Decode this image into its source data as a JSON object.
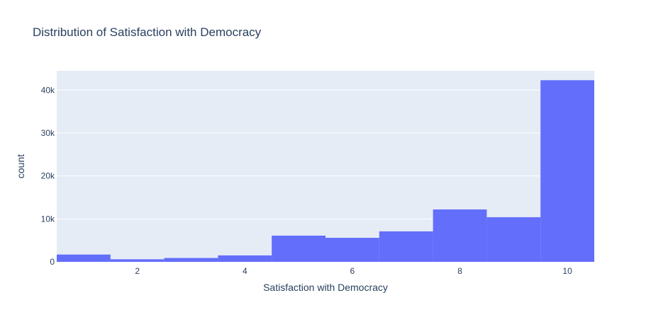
{
  "chart_data": {
    "type": "bar",
    "title": "Distribution of Satisfaction with Democracy",
    "xlabel": "Satisfaction with Democracy",
    "ylabel": "count",
    "x": [
      1,
      2,
      3,
      4,
      5,
      6,
      7,
      8,
      9,
      10
    ],
    "values": [
      1700,
      600,
      900,
      1500,
      6100,
      5600,
      7100,
      12200,
      10400,
      42300
    ],
    "xlim": [
      0.5,
      10.5
    ],
    "ylim": [
      0,
      44500
    ],
    "xticks": [
      2,
      4,
      6,
      8,
      10
    ],
    "xtick_labels": [
      "2",
      "4",
      "6",
      "8",
      "10"
    ],
    "yticks": [
      0,
      10000,
      20000,
      30000,
      40000
    ],
    "ytick_labels": [
      "0",
      "10k",
      "20k",
      "30k",
      "40k"
    ],
    "grid": true,
    "colors": {
      "bar": "#636efa",
      "plot_bg": "#e5ecf6",
      "grid": "#ffffff",
      "text": "#2a3f5f"
    }
  }
}
